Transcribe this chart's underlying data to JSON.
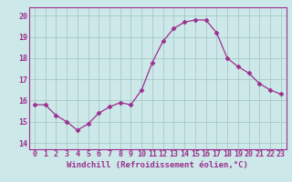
{
  "x": [
    0,
    1,
    2,
    3,
    4,
    5,
    6,
    7,
    8,
    9,
    10,
    11,
    12,
    13,
    14,
    15,
    16,
    17,
    18,
    19,
    20,
    21,
    22,
    23
  ],
  "y": [
    15.8,
    15.8,
    15.3,
    15.0,
    14.6,
    14.9,
    15.4,
    15.7,
    15.9,
    15.8,
    16.5,
    17.8,
    18.8,
    19.4,
    19.7,
    19.8,
    19.8,
    19.2,
    18.0,
    17.6,
    17.3,
    16.8,
    16.5,
    16.3
  ],
  "line_color": "#9b308f",
  "marker": "D",
  "marker_size": 2.5,
  "bg_color": "#cde8e8",
  "grid_color": "#a8c8c8",
  "xlabel": "Windchill (Refroidissement éolien,°C)",
  "xticks": [
    0,
    1,
    2,
    3,
    4,
    5,
    6,
    7,
    8,
    9,
    10,
    11,
    12,
    13,
    14,
    15,
    16,
    17,
    18,
    19,
    20,
    21,
    22,
    23
  ],
  "yticks": [
    14,
    15,
    16,
    17,
    18,
    19,
    20
  ],
  "ylim": [
    13.7,
    20.4
  ],
  "xlim": [
    -0.5,
    23.5
  ],
  "xlabel_fontsize": 6.5,
  "tick_fontsize": 6.0
}
